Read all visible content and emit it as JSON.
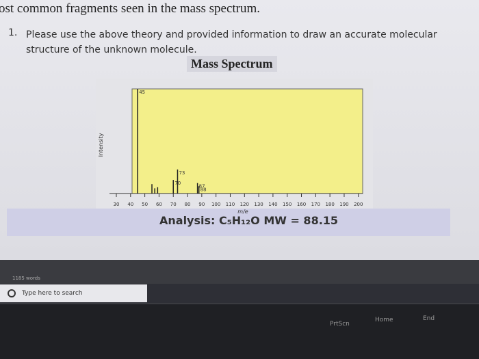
{
  "document": {
    "heading": "ost common fragments seen in the mass spectrum.",
    "question": {
      "number": "1.",
      "text": "Please use the above theory and provided information to draw an accurate molecular structure of the unknown molecule."
    },
    "figure_title": "Mass Spectrum",
    "analysis": "Analysis: C₅H₁₂O MW = 88.15"
  },
  "chart_data": {
    "type": "stick",
    "x_label": "m/e",
    "y_label": "Intensity",
    "x": [
      45,
      55,
      57,
      59,
      70,
      73,
      87,
      88
    ],
    "values": [
      100,
      9,
      5,
      6,
      13,
      23,
      10,
      7
    ],
    "peak_labels": [
      "45",
      null,
      null,
      null,
      "70",
      "73",
      "87",
      "88"
    ],
    "xlim": [
      30,
      203
    ],
    "ylim": [
      0,
      100
    ],
    "xticks": [
      30,
      40,
      50,
      60,
      70,
      80,
      90,
      100,
      110,
      120,
      130,
      140,
      150,
      160,
      170,
      180,
      190,
      200
    ],
    "color": "#222222",
    "background": "#f3ef8a"
  },
  "taskbar": {
    "status": "1185 words",
    "search_placeholder": "Type here to search"
  },
  "keyboard": {
    "keys": [
      "PrtScn",
      "Home",
      "End"
    ]
  }
}
